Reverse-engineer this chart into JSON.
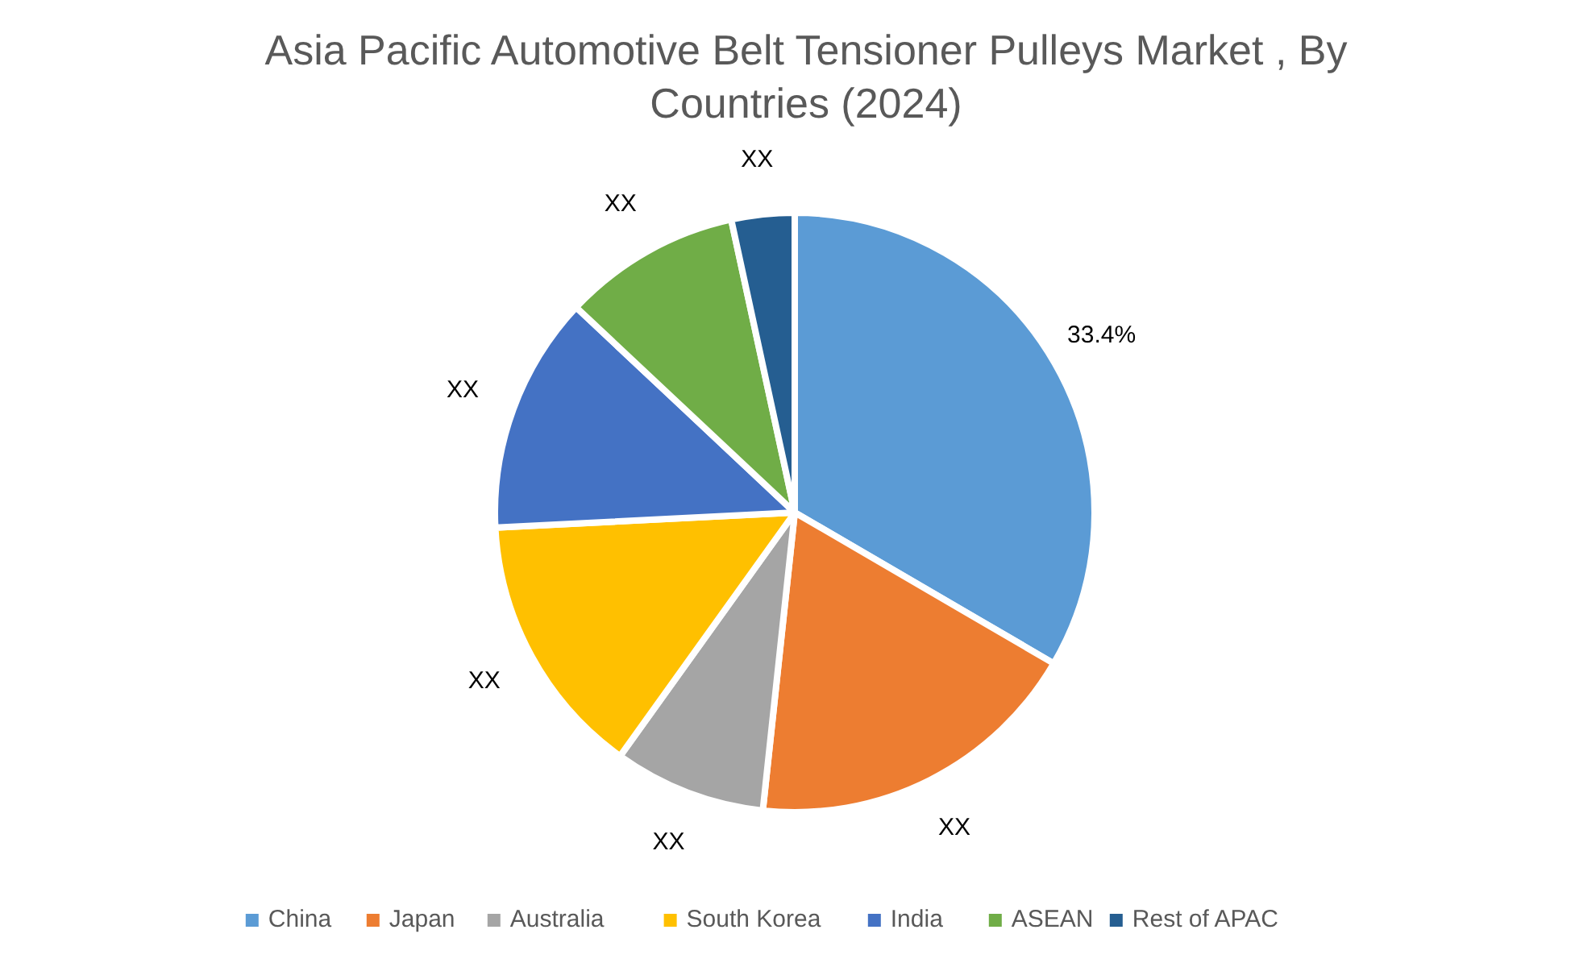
{
  "chart_data": {
    "type": "pie",
    "title": "Asia Pacific Automotive Belt Tensioner Pulleys Market , By Countries (2024)",
    "categories": [
      "China",
      "Japan",
      "Australia",
      "South Korea",
      "India",
      "ASEAN",
      "Rest of APAC"
    ],
    "values": [
      33.4,
      18.3,
      8.2,
      14.3,
      12.8,
      9.6,
      3.4
    ],
    "colors": [
      "#5b9bd5",
      "#ed7d31",
      "#a5a5a5",
      "#ffc000",
      "#4472c4",
      "#70ad47",
      "#255e91"
    ],
    "value_labels": [
      "33.4%",
      "XX",
      "XX",
      "XX",
      "XX",
      "XX",
      "XX"
    ],
    "legend": "bottom"
  }
}
